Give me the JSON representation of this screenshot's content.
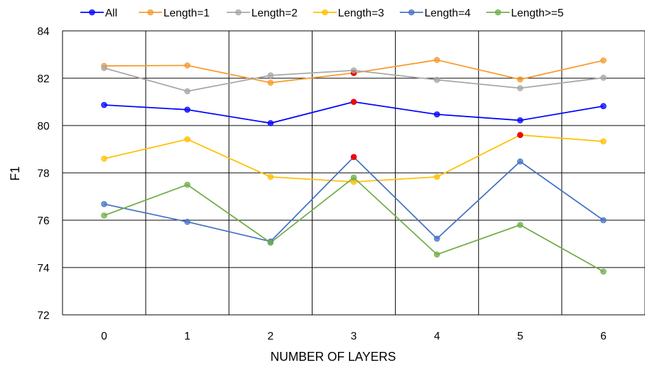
{
  "chart_data": {
    "type": "line",
    "title": "",
    "xlabel": "NUMBER OF LAYERS",
    "ylabel": "F1",
    "x": [
      0,
      1,
      2,
      3,
      4,
      5,
      6
    ],
    "ylim": [
      72,
      84
    ],
    "yticks": [
      72,
      74,
      76,
      78,
      80,
      82,
      84
    ],
    "grid": true,
    "legend_position": "top",
    "series": [
      {
        "name": "All",
        "color": "#0000FF",
        "values": [
          80.87,
          80.67,
          80.1,
          81.0,
          80.47,
          80.22,
          80.82
        ]
      },
      {
        "name": "Length=1",
        "color": "#F79A2E",
        "values": [
          82.52,
          82.54,
          81.81,
          82.22,
          82.77,
          81.95,
          82.75
        ]
      },
      {
        "name": "Length=2",
        "color": "#A6A6A6",
        "values": [
          82.43,
          81.45,
          82.12,
          82.33,
          81.93,
          81.58,
          82.02
        ]
      },
      {
        "name": "Length=3",
        "color": "#FFC000",
        "values": [
          78.6,
          79.42,
          77.83,
          77.62,
          77.83,
          79.6,
          79.33
        ]
      },
      {
        "name": "Length=4",
        "color": "#4472C4",
        "values": [
          76.68,
          75.93,
          75.1,
          78.67,
          75.22,
          78.48,
          76.0
        ]
      },
      {
        "name": "Length>=5",
        "color": "#70AD47",
        "values": [
          76.2,
          77.5,
          75.05,
          77.8,
          74.55,
          75.8,
          73.83
        ]
      }
    ],
    "highlighted_points": [
      {
        "series": "Length=1",
        "x": 3,
        "color": "#FF0000"
      },
      {
        "series": "All",
        "x": 3,
        "color": "#FF0000"
      },
      {
        "series": "Length=4",
        "x": 3,
        "color": "#FF0000"
      },
      {
        "series": "Length=3",
        "x": 5,
        "color": "#FF0000"
      }
    ]
  }
}
